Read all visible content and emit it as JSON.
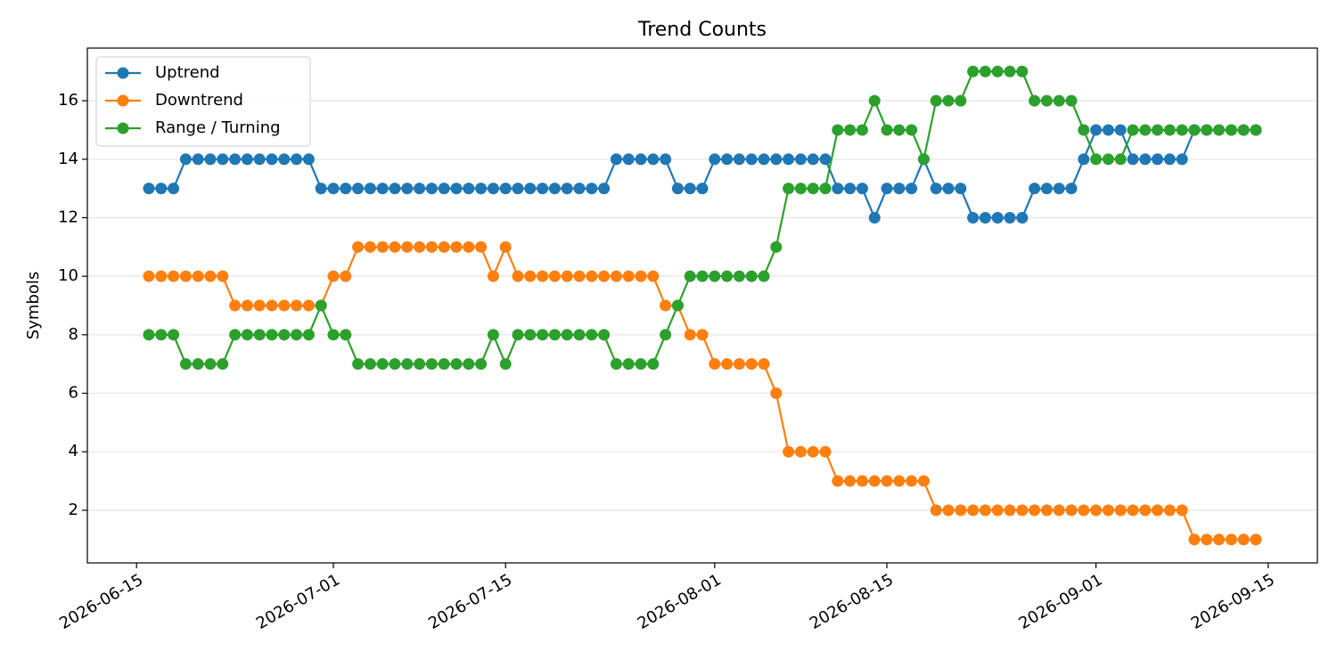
{
  "chart_data": {
    "type": "line",
    "title": "Trend Counts",
    "y_label": "Symbols",
    "x": [
      "2026-06-16",
      "2026-06-17",
      "2026-06-18",
      "2026-06-19",
      "2026-06-20",
      "2026-06-21",
      "2026-06-22",
      "2026-06-23",
      "2026-06-24",
      "2026-06-25",
      "2026-06-26",
      "2026-06-27",
      "2026-06-28",
      "2026-06-29",
      "2026-06-30",
      "2026-07-01",
      "2026-07-02",
      "2026-07-03",
      "2026-07-04",
      "2026-07-05",
      "2026-07-06",
      "2026-07-07",
      "2026-07-08",
      "2026-07-09",
      "2026-07-10",
      "2026-07-11",
      "2026-07-12",
      "2026-07-13",
      "2026-07-14",
      "2026-07-15",
      "2026-07-16",
      "2026-07-17",
      "2026-07-18",
      "2026-07-19",
      "2026-07-20",
      "2026-07-21",
      "2026-07-22",
      "2026-07-23",
      "2026-07-24",
      "2026-07-25",
      "2026-07-26",
      "2026-07-27",
      "2026-07-28",
      "2026-07-29",
      "2026-07-30",
      "2026-07-31",
      "2026-08-01",
      "2026-08-02",
      "2026-08-03",
      "2026-08-04",
      "2026-08-05",
      "2026-08-06",
      "2026-08-07",
      "2026-08-08",
      "2026-08-09",
      "2026-08-10",
      "2026-08-11",
      "2026-08-12",
      "2026-08-13",
      "2026-08-14",
      "2026-08-15",
      "2026-08-16",
      "2026-08-17",
      "2026-08-18",
      "2026-08-19",
      "2026-08-20",
      "2026-08-21",
      "2026-08-22",
      "2026-08-23",
      "2026-08-24",
      "2026-08-25",
      "2026-08-26",
      "2026-08-27",
      "2026-08-28",
      "2026-08-29",
      "2026-08-30",
      "2026-08-31",
      "2026-09-01",
      "2026-09-02",
      "2026-09-03",
      "2026-09-04",
      "2026-09-05",
      "2026-09-06",
      "2026-09-07",
      "2026-09-08",
      "2026-09-09",
      "2026-09-10",
      "2026-09-11",
      "2026-09-12",
      "2026-09-13",
      "2026-09-14"
    ],
    "series": [
      {
        "name": "Uptrend",
        "color": "#1f77b4",
        "values": [
          13,
          13,
          13,
          14,
          14,
          14,
          14,
          14,
          14,
          14,
          14,
          14,
          14,
          14,
          13,
          13,
          13,
          13,
          13,
          13,
          13,
          13,
          13,
          13,
          13,
          13,
          13,
          13,
          13,
          13,
          13,
          13,
          13,
          13,
          13,
          13,
          13,
          13,
          14,
          14,
          14,
          14,
          14,
          13,
          13,
          13,
          14,
          14,
          14,
          14,
          14,
          14,
          14,
          14,
          14,
          14,
          13,
          13,
          13,
          12,
          13,
          13,
          13,
          14,
          13,
          13,
          13,
          12,
          12,
          12,
          12,
          12,
          13,
          13,
          13,
          13,
          14,
          15,
          15,
          15,
          14,
          14,
          14,
          14,
          14,
          15,
          15,
          15,
          15,
          15,
          15
        ]
      },
      {
        "name": "Downtrend",
        "color": "#ff7f0e",
        "values": [
          10,
          10,
          10,
          10,
          10,
          10,
          10,
          9,
          9,
          9,
          9,
          9,
          9,
          9,
          9,
          10,
          10,
          11,
          11,
          11,
          11,
          11,
          11,
          11,
          11,
          11,
          11,
          11,
          10,
          11,
          10,
          10,
          10,
          10,
          10,
          10,
          10,
          10,
          10,
          10,
          10,
          10,
          9,
          9,
          8,
          8,
          7,
          7,
          7,
          7,
          7,
          6,
          4,
          4,
          4,
          4,
          3,
          3,
          3,
          3,
          3,
          3,
          3,
          3,
          2,
          2,
          2,
          2,
          2,
          2,
          2,
          2,
          2,
          2,
          2,
          2,
          2,
          2,
          2,
          2,
          2,
          2,
          2,
          2,
          2,
          1,
          1,
          1,
          1,
          1,
          1
        ]
      },
      {
        "name": "Range / Turning",
        "color": "#2ca02c",
        "values": [
          8,
          8,
          8,
          7,
          7,
          7,
          7,
          8,
          8,
          8,
          8,
          8,
          8,
          8,
          9,
          8,
          8,
          7,
          7,
          7,
          7,
          7,
          7,
          7,
          7,
          7,
          7,
          7,
          8,
          7,
          8,
          8,
          8,
          8,
          8,
          8,
          8,
          8,
          7,
          7,
          7,
          7,
          8,
          9,
          10,
          10,
          10,
          10,
          10,
          10,
          10,
          11,
          13,
          13,
          13,
          13,
          15,
          15,
          15,
          16,
          15,
          15,
          15,
          14,
          16,
          16,
          16,
          17,
          17,
          17,
          17,
          17,
          16,
          16,
          16,
          16,
          15,
          14,
          14,
          14,
          15,
          15,
          15,
          15,
          15,
          15,
          15,
          15,
          15,
          15,
          15
        ]
      }
    ],
    "xlim": [
      "2026-06-11",
      "2026-09-19"
    ],
    "xticks": [
      "2026-06-15",
      "2026-07-01",
      "2026-07-15",
      "2026-08-01",
      "2026-08-15",
      "2026-09-01",
      "2026-09-15"
    ],
    "ylim": [
      0.2,
      17.8
    ],
    "yticks": [
      2,
      4,
      6,
      8,
      10,
      12,
      14,
      16
    ],
    "grid": "y",
    "legend": "upper left"
  }
}
